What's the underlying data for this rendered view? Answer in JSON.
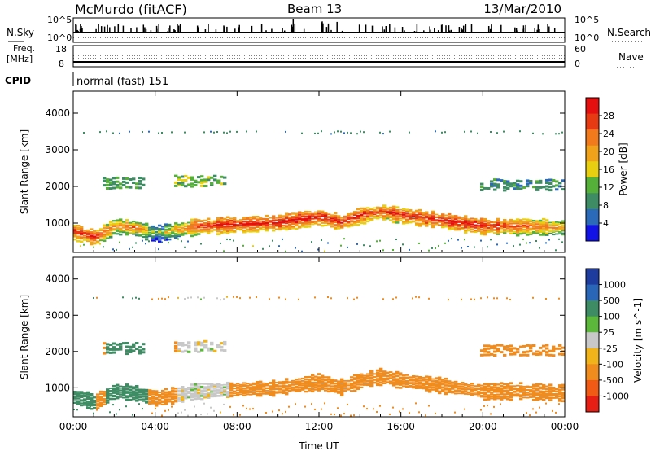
{
  "header": {
    "station": "McMurdo (fitACF)",
    "beam": "Beam 13",
    "date": "13/Mar/2010"
  },
  "aux_panels": {
    "noise": {
      "left_label": "N.Sky",
      "right_label": "N.Search",
      "left_ticks": [
        "10^5",
        "10^0"
      ],
      "right_ticks": [
        "10^5",
        "10^0"
      ]
    },
    "freq": {
      "left_label_1": "Freq.",
      "left_label_2": "[MHz]",
      "right_label": "Nave",
      "left_ticks": [
        "18",
        "8"
      ],
      "right_ticks": [
        "60",
        "0"
      ]
    },
    "cpid": {
      "label": "CPID",
      "value": "normal (fast) 151"
    }
  },
  "colors": {
    "power_scale": [
      "#1212e6",
      "#2a6ab8",
      "#3e8c64",
      "#55b03a",
      "#e8cf10",
      "#f0a21a",
      "#f07a1c",
      "#e83a12",
      "#e60f0f"
    ],
    "velocity_scale": [
      "#1e3c9e",
      "#2a66b8",
      "#3e8c64",
      "#5cb83a",
      "#c8c8c8",
      "#f0b41a",
      "#f08c1e",
      "#f05a14",
      "#e61e14"
    ]
  },
  "chart_data": [
    {
      "type": "heatmap",
      "panel": "Power",
      "ylabel": "Slant Range [km]",
      "xlabel": "",
      "ylim": [
        200,
        4600
      ],
      "xlim": [
        0,
        24
      ],
      "y_ticks": [
        "1000",
        "2000",
        "3000",
        "4000"
      ],
      "x_ticks": [
        "00:00",
        "04:00",
        "08:00",
        "12:00",
        "16:00",
        "20:00",
        "00:00"
      ],
      "colorbar": {
        "label": "Power [dB]",
        "ticks": [
          "4",
          "8",
          "12",
          "16",
          "20",
          "24",
          "28"
        ],
        "range": [
          0,
          30
        ]
      },
      "main_band": [
        {
          "t": 0.0,
          "range": 750,
          "power": 26
        },
        {
          "t": 1.0,
          "range": 600,
          "power": 28
        },
        {
          "t": 2.0,
          "range": 900,
          "power": 20
        },
        {
          "t": 3.0,
          "range": 850,
          "power": 24
        },
        {
          "t": 4.0,
          "range": 700,
          "power": 12
        },
        {
          "t": 6.0,
          "range": 900,
          "power": 27
        },
        {
          "t": 8.0,
          "range": 950,
          "power": 28
        },
        {
          "t": 10.0,
          "range": 1000,
          "power": 28
        },
        {
          "t": 12.0,
          "range": 1150,
          "power": 28
        },
        {
          "t": 13.0,
          "range": 1000,
          "power": 28
        },
        {
          "t": 14.0,
          "range": 1200,
          "power": 26
        },
        {
          "t": 15.0,
          "range": 1300,
          "power": 26
        },
        {
          "t": 16.0,
          "range": 1200,
          "power": 27
        },
        {
          "t": 18.0,
          "range": 1050,
          "power": 28
        },
        {
          "t": 20.0,
          "range": 900,
          "power": 28
        },
        {
          "t": 22.0,
          "range": 900,
          "power": 24
        },
        {
          "t": 24.0,
          "range": 850,
          "power": 20
        }
      ],
      "upper_patches": [
        {
          "t0": 1.5,
          "t1": 3.5,
          "range": 2150,
          "power": 10
        },
        {
          "t0": 5.0,
          "t1": 7.5,
          "range": 2200,
          "power": 12
        },
        {
          "t0": 20.0,
          "t1": 24.0,
          "range": 2100,
          "power": 8
        }
      ]
    },
    {
      "type": "heatmap",
      "panel": "Velocity",
      "ylabel": "Slant Range [km]",
      "xlabel": "Time UT",
      "ylim": [
        200,
        4600
      ],
      "xlim": [
        0,
        24
      ],
      "y_ticks": [
        "1000",
        "2000",
        "3000",
        "4000"
      ],
      "x_ticks": [
        "00:00",
        "04:00",
        "08:00",
        "12:00",
        "16:00",
        "20:00",
        "00:00"
      ],
      "colorbar": {
        "label": "Velocity [m s^-1]",
        "ticks": [
          "1000",
          "500",
          "100",
          "25",
          "-25",
          "-100",
          "-500",
          "-1000"
        ]
      },
      "segments": [
        {
          "t0": 0.0,
          "t1": 1.0,
          "velocity": 250
        },
        {
          "t0": 1.5,
          "t1": 3.5,
          "velocity": 150
        },
        {
          "t0": 5.0,
          "t1": 7.5,
          "velocity": 0
        },
        {
          "t0": 7.5,
          "t1": 24.0,
          "velocity": -150
        }
      ]
    }
  ]
}
